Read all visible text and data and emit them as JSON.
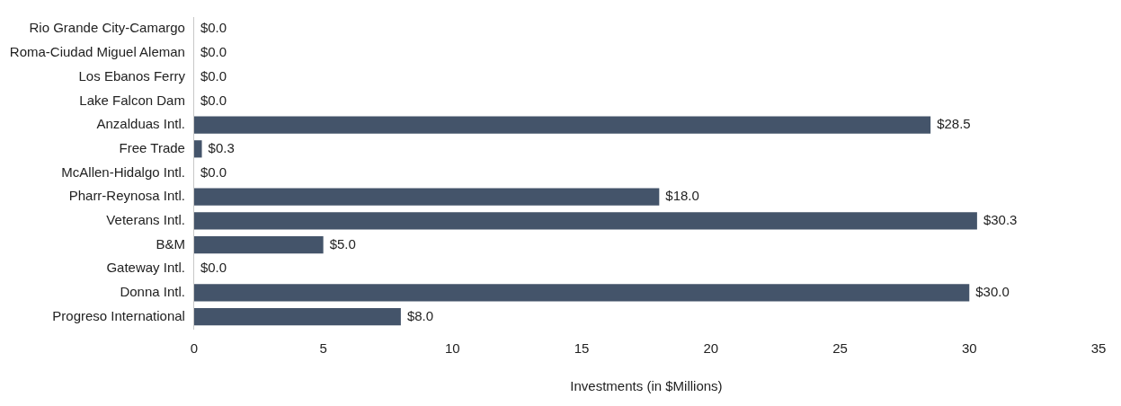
{
  "chart_data": {
    "type": "bar",
    "orientation": "horizontal",
    "xlabel": "Investments (in $Millions)",
    "categories": [
      "Rio Grande City-Camargo",
      "Roma-Ciudad Miguel Aleman",
      "Los Ebanos Ferry",
      "Lake Falcon Dam",
      "Anzalduas Intl.",
      "Free Trade",
      "McAllen-Hidalgo Intl.",
      "Pharr-Reynosa Intl.",
      "Veterans Intl.",
      "B&M",
      "Gateway Intl.",
      "Donna Intl.",
      "Progreso International"
    ],
    "values": [
      0,
      0,
      0,
      0,
      28.5,
      0.3,
      0,
      18,
      30.3,
      5,
      0,
      30,
      8
    ],
    "value_labels": [
      "$0.0",
      "$0.0",
      "$0.0",
      "$0.0",
      "$28.5",
      "$0.3",
      "$0.0",
      "$18.0",
      "$30.3",
      "$5.0",
      "$0.0",
      "$30.0",
      "$8.0"
    ],
    "color": "#44546a",
    "xlim": [
      0,
      35
    ],
    "xticks": [
      0,
      5,
      10,
      15,
      20,
      25,
      30,
      35
    ],
    "grid": false,
    "legend": false
  }
}
